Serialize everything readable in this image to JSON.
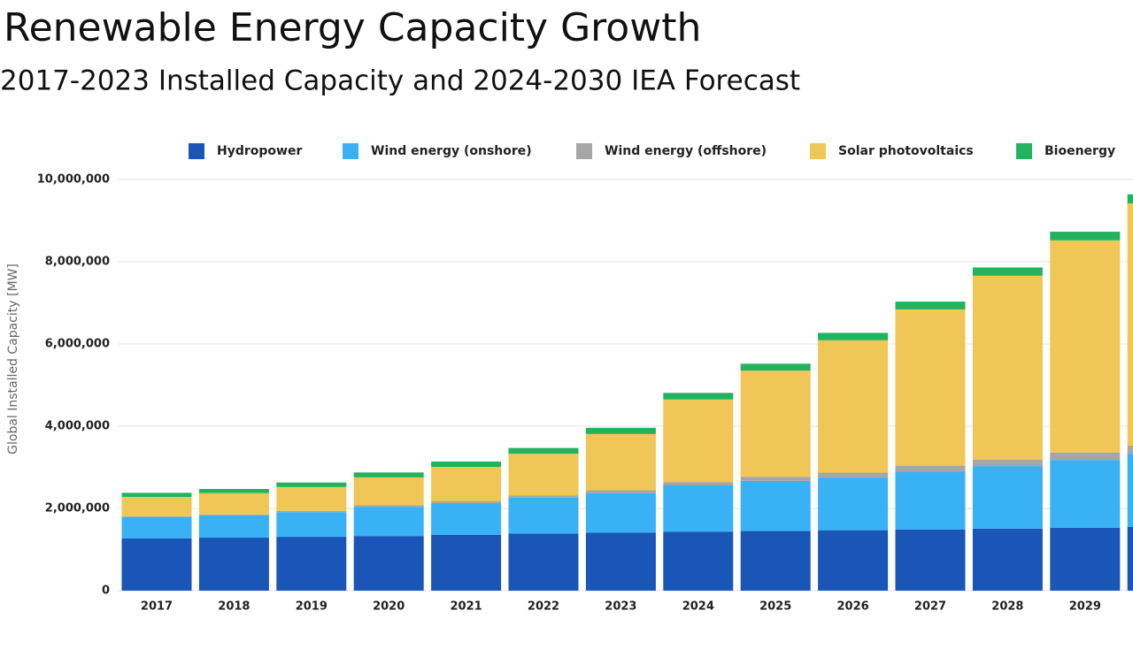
{
  "chart_data": {
    "type": "stacked_bar",
    "title": "Renewable Energy Capacity Growth",
    "subtitle": "2017-2023 Installed Capacity and 2024-2030 IEA Forecast",
    "y_label": "Global Installed Capacity [MW]",
    "categories": [
      "2017",
      "2018",
      "2019",
      "2020",
      "2021",
      "2022",
      "2023",
      "2024",
      "2025",
      "2026",
      "2027",
      "2028",
      "2029",
      null
    ],
    "series": [
      {
        "name": "Hydropower",
        "color": "#1a56b8",
        "values": [
          1270000,
          1290000,
          1310000,
          1330000,
          1360000,
          1390000,
          1410000,
          1430000,
          1450000,
          1470000,
          1490000,
          1510000,
          1530000,
          1550000
        ]
      },
      {
        "name": "Wind energy (onshore)",
        "color": "#38b1f5",
        "values": [
          520000,
          540000,
          600000,
          710000,
          770000,
          870000,
          960000,
          1130000,
          1220000,
          1280000,
          1410000,
          1520000,
          1650000,
          1780000
        ]
      },
      {
        "name": "Wind energy (offshore)",
        "color": "#a6a6a6",
        "values": [
          20000,
          23000,
          30000,
          35000,
          50000,
          60000,
          70000,
          80000,
          100000,
          120000,
          140000,
          160000,
          180000,
          200000
        ]
      },
      {
        "name": "Solar photovoltaics",
        "color": "#f0c656",
        "values": [
          470000,
          520000,
          580000,
          680000,
          830000,
          1010000,
          1370000,
          2010000,
          2580000,
          3220000,
          3800000,
          4470000,
          5160000,
          5890000
        ]
      },
      {
        "name": "Bioenergy",
        "color": "#22b35f",
        "values": [
          100000,
          100000,
          110000,
          120000,
          130000,
          140000,
          150000,
          160000,
          170000,
          180000,
          190000,
          200000,
          210000,
          220000
        ]
      }
    ],
    "ylim": [
      0,
      10000000
    ],
    "yticks": [
      0,
      {
        "value": 2000000,
        "label": "2,000,000"
      },
      {
        "value": 4000000,
        "label": "4,000,000"
      },
      {
        "value": 6000000,
        "label": "6,000,000"
      },
      {
        "value": 8000000,
        "label": "8,000,000"
      },
      {
        "value": 10000000,
        "label": "10,000,000"
      }
    ],
    "grid": true
  }
}
